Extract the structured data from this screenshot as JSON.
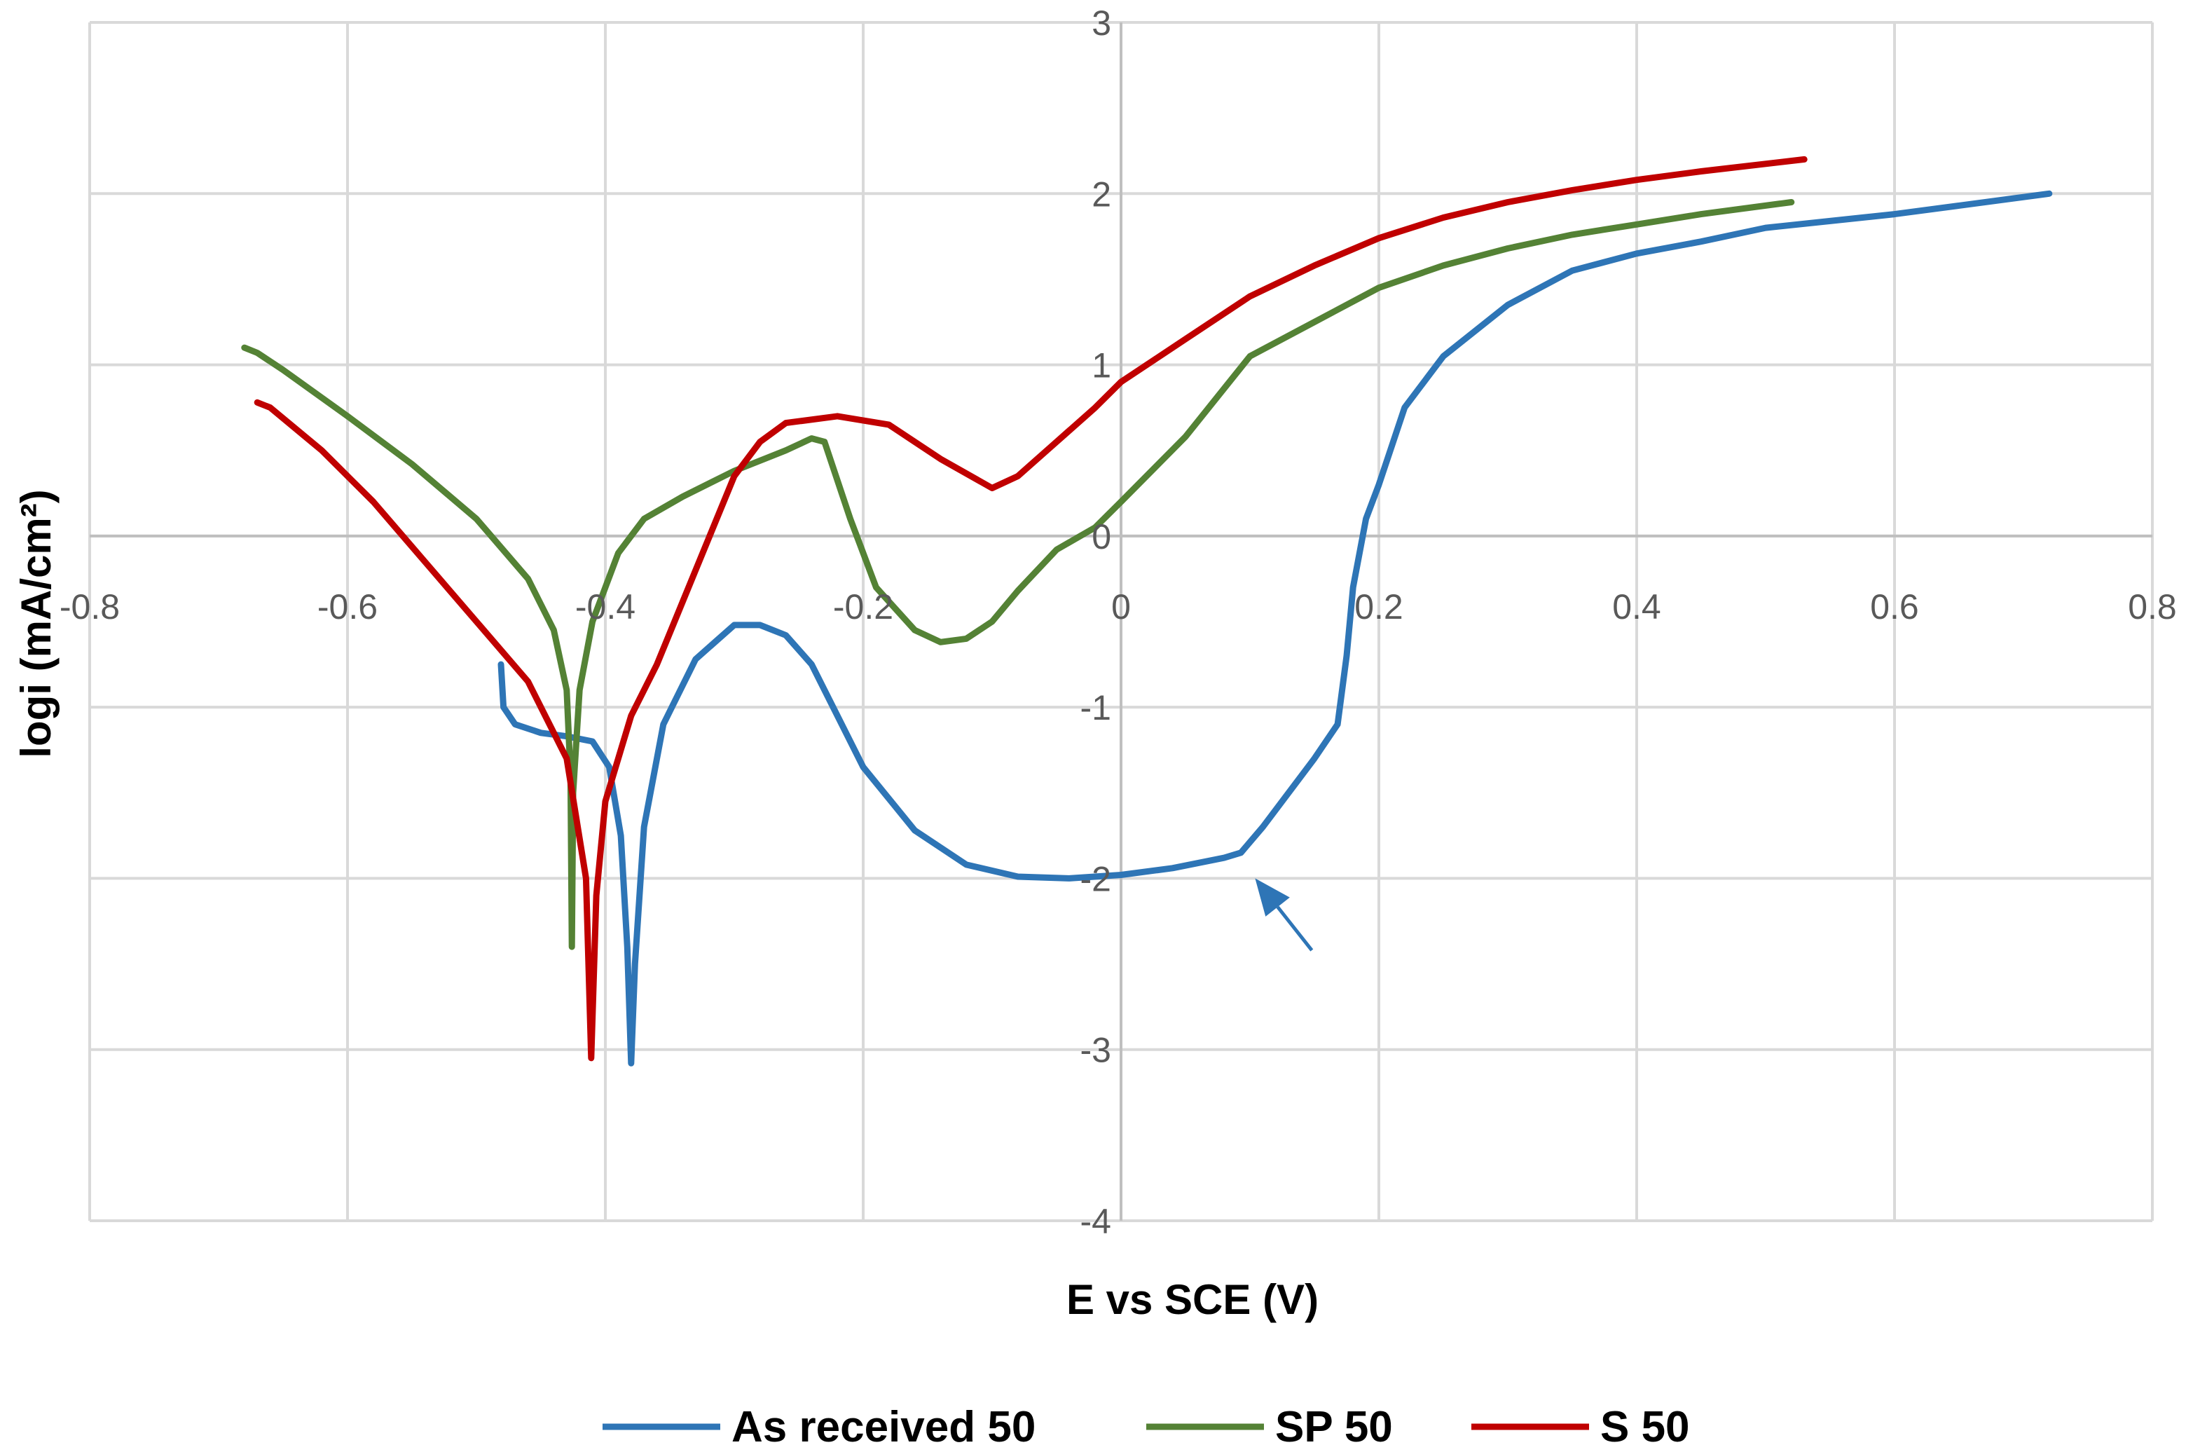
{
  "chart_data": {
    "type": "line",
    "title": "",
    "xlabel": "E vs SCE (V)",
    "ylabel": "logi (mA/cm²)",
    "xlim": [
      -0.8,
      0.8
    ],
    "ylim": [
      -4,
      3
    ],
    "x_ticks": [
      -0.8,
      -0.6,
      -0.4,
      -0.2,
      0,
      0.2,
      0.4,
      0.6,
      0.8
    ],
    "x_tick_labels": [
      "-0.8",
      "-0.6",
      "-0.4",
      "-0.2",
      "0",
      "0.2",
      "0.4",
      "0.6",
      "0.8"
    ],
    "y_ticks": [
      -4,
      -3,
      -2,
      -1,
      0,
      1,
      2,
      3
    ],
    "y_tick_labels": [
      "-4",
      "-3",
      "-2",
      "-1",
      "0",
      "1",
      "2",
      "3"
    ],
    "grid": true,
    "legend_position": "bottom",
    "series": [
      {
        "name": "As received 50",
        "color": "#2E75B6",
        "points": [
          [
            -0.481,
            -0.75
          ],
          [
            -0.479,
            -1.0
          ],
          [
            -0.47,
            -1.1
          ],
          [
            -0.45,
            -1.15
          ],
          [
            -0.43,
            -1.17
          ],
          [
            -0.41,
            -1.2
          ],
          [
            -0.397,
            -1.35
          ],
          [
            -0.388,
            -1.75
          ],
          [
            -0.383,
            -2.4
          ],
          [
            -0.38,
            -3.08
          ],
          [
            -0.377,
            -2.5
          ],
          [
            -0.37,
            -1.7
          ],
          [
            -0.355,
            -1.1
          ],
          [
            -0.33,
            -0.72
          ],
          [
            -0.3,
            -0.52
          ],
          [
            -0.28,
            -0.52
          ],
          [
            -0.26,
            -0.58
          ],
          [
            -0.24,
            -0.75
          ],
          [
            -0.2,
            -1.35
          ],
          [
            -0.16,
            -1.72
          ],
          [
            -0.12,
            -1.92
          ],
          [
            -0.08,
            -1.99
          ],
          [
            -0.04,
            -2.0
          ],
          [
            0.0,
            -1.98
          ],
          [
            0.04,
            -1.94
          ],
          [
            0.08,
            -1.88
          ],
          [
            0.093,
            -1.85
          ],
          [
            0.11,
            -1.7
          ],
          [
            0.15,
            -1.3
          ],
          [
            0.168,
            -1.1
          ],
          [
            0.175,
            -0.7
          ],
          [
            0.18,
            -0.3
          ],
          [
            0.19,
            0.1
          ],
          [
            0.2,
            0.3
          ],
          [
            0.22,
            0.75
          ],
          [
            0.25,
            1.05
          ],
          [
            0.3,
            1.35
          ],
          [
            0.35,
            1.55
          ],
          [
            0.4,
            1.65
          ],
          [
            0.45,
            1.72
          ],
          [
            0.5,
            1.8
          ],
          [
            0.55,
            1.84
          ],
          [
            0.6,
            1.88
          ],
          [
            0.65,
            1.93
          ],
          [
            0.72,
            2.0
          ]
        ]
      },
      {
        "name": "SP 50",
        "color": "#548235",
        "points": [
          [
            -0.68,
            1.1
          ],
          [
            -0.67,
            1.07
          ],
          [
            -0.65,
            0.97
          ],
          [
            -0.6,
            0.7
          ],
          [
            -0.55,
            0.42
          ],
          [
            -0.5,
            0.1
          ],
          [
            -0.46,
            -0.25
          ],
          [
            -0.44,
            -0.55
          ],
          [
            -0.43,
            -0.9
          ],
          [
            -0.427,
            -1.4
          ],
          [
            -0.426,
            -2.4
          ],
          [
            -0.425,
            -1.5
          ],
          [
            -0.42,
            -0.9
          ],
          [
            -0.41,
            -0.5
          ],
          [
            -0.39,
            -0.1
          ],
          [
            -0.37,
            0.1
          ],
          [
            -0.34,
            0.23
          ],
          [
            -0.3,
            0.38
          ],
          [
            -0.26,
            0.5
          ],
          [
            -0.24,
            0.57
          ],
          [
            -0.23,
            0.55
          ],
          [
            -0.21,
            0.1
          ],
          [
            -0.19,
            -0.3
          ],
          [
            -0.16,
            -0.55
          ],
          [
            -0.14,
            -0.62
          ],
          [
            -0.12,
            -0.6
          ],
          [
            -0.1,
            -0.5
          ],
          [
            -0.08,
            -0.32
          ],
          [
            -0.05,
            -0.08
          ],
          [
            -0.02,
            0.05
          ],
          [
            0.0,
            0.2
          ],
          [
            0.05,
            0.58
          ],
          [
            0.1,
            1.05
          ],
          [
            0.15,
            1.25
          ],
          [
            0.2,
            1.45
          ],
          [
            0.25,
            1.58
          ],
          [
            0.3,
            1.68
          ],
          [
            0.35,
            1.76
          ],
          [
            0.4,
            1.82
          ],
          [
            0.45,
            1.88
          ],
          [
            0.52,
            1.95
          ]
        ]
      },
      {
        "name": "S 50",
        "color": "#C00000",
        "points": [
          [
            -0.67,
            0.78
          ],
          [
            -0.66,
            0.75
          ],
          [
            -0.62,
            0.5
          ],
          [
            -0.58,
            0.2
          ],
          [
            -0.54,
            -0.15
          ],
          [
            -0.5,
            -0.5
          ],
          [
            -0.46,
            -0.85
          ],
          [
            -0.43,
            -1.3
          ],
          [
            -0.415,
            -2.0
          ],
          [
            -0.411,
            -3.05
          ],
          [
            -0.407,
            -2.1
          ],
          [
            -0.4,
            -1.55
          ],
          [
            -0.38,
            -1.05
          ],
          [
            -0.36,
            -0.75
          ],
          [
            -0.33,
            -0.2
          ],
          [
            -0.3,
            0.35
          ],
          [
            -0.28,
            0.55
          ],
          [
            -0.26,
            0.66
          ],
          [
            -0.22,
            0.7
          ],
          [
            -0.18,
            0.65
          ],
          [
            -0.14,
            0.45
          ],
          [
            -0.1,
            0.28
          ],
          [
            -0.08,
            0.35
          ],
          [
            -0.05,
            0.55
          ],
          [
            -0.02,
            0.75
          ],
          [
            0.0,
            0.9
          ],
          [
            0.05,
            1.15
          ],
          [
            0.1,
            1.4
          ],
          [
            0.15,
            1.58
          ],
          [
            0.2,
            1.74
          ],
          [
            0.25,
            1.86
          ],
          [
            0.3,
            1.95
          ],
          [
            0.35,
            2.02
          ],
          [
            0.4,
            2.08
          ],
          [
            0.45,
            2.13
          ],
          [
            0.53,
            2.2
          ]
        ]
      }
    ],
    "annotations": [
      {
        "type": "arrow",
        "color": "#2E75B6",
        "from": [
          0.148,
          -2.42
        ],
        "to": [
          0.104,
          -2.0
        ]
      }
    ]
  }
}
